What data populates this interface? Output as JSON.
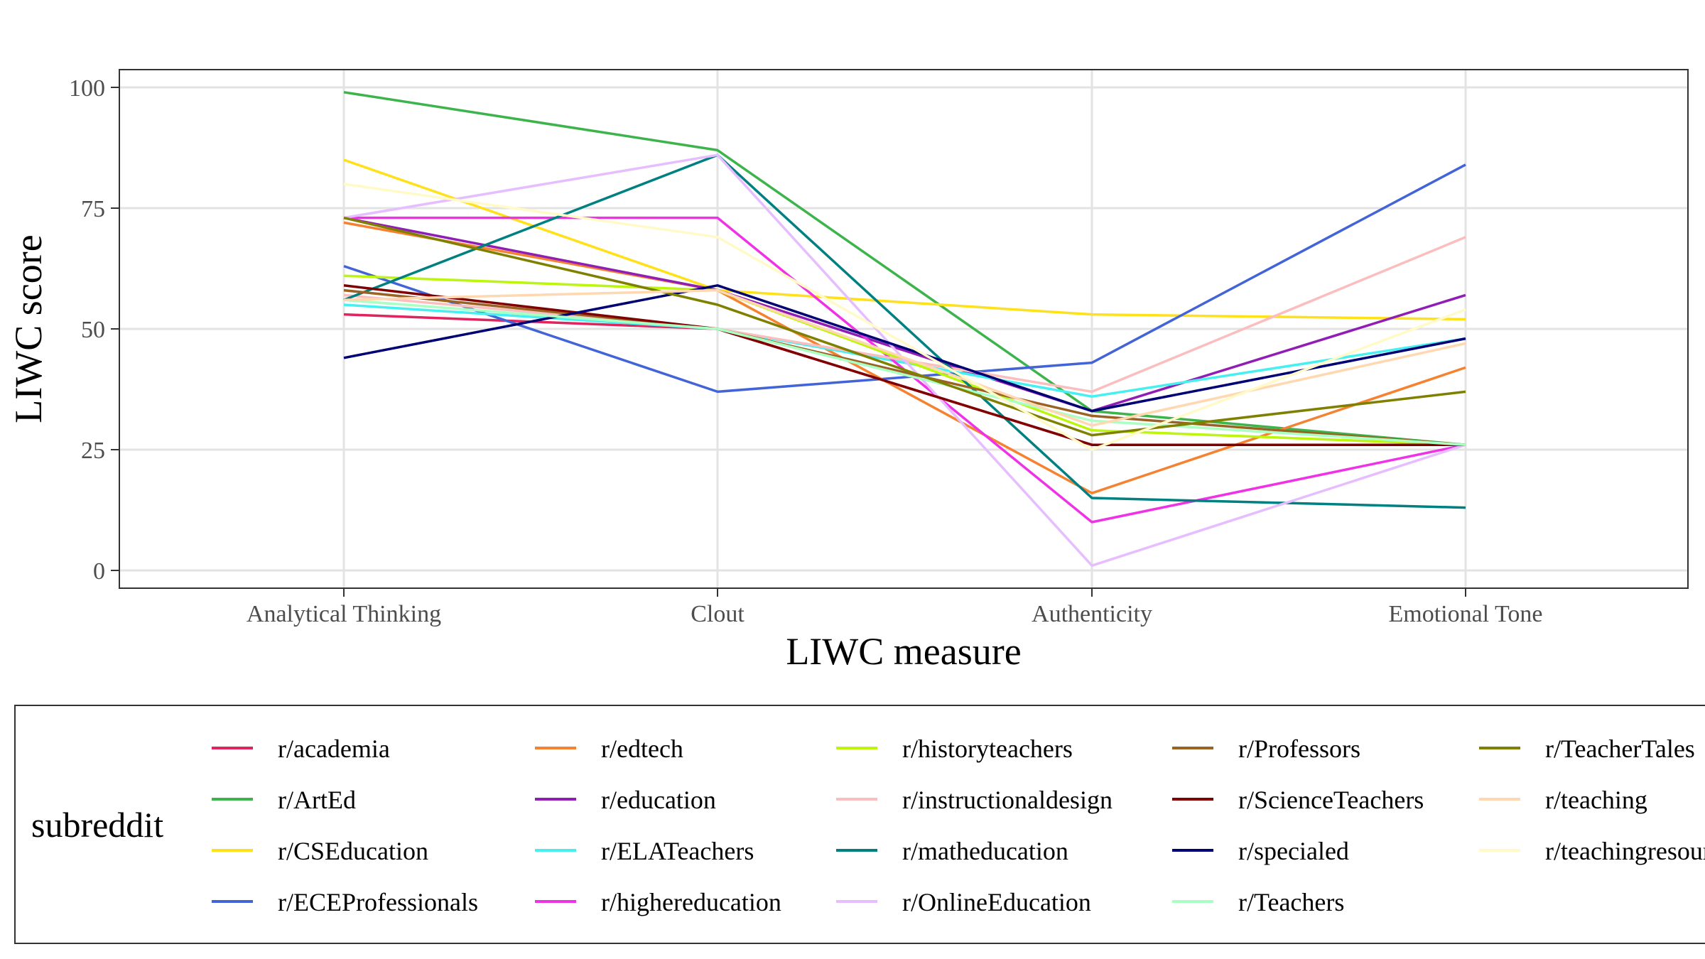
{
  "chart_data": {
    "type": "line",
    "title": "",
    "xlabel": "LIWC measure",
    "ylabel": "LIWC score",
    "categories": [
      "Analytical Thinking",
      "Clout",
      "Authenticity",
      "Emotional Tone"
    ],
    "ylim": [
      -3,
      104
    ],
    "yticks": [
      0,
      25,
      50,
      75,
      100
    ],
    "grid": true,
    "legend": {
      "title": "subreddit",
      "position": "bottom"
    },
    "series": [
      {
        "name": "r/academia",
        "color": "#e0245e",
        "values": [
          53,
          50,
          26,
          26
        ]
      },
      {
        "name": "r/ArtEd",
        "color": "#3cb44b",
        "values": [
          99,
          87,
          33,
          26
        ]
      },
      {
        "name": "r/CSEducation",
        "color": "#ffe119",
        "values": [
          85,
          58,
          53,
          52
        ]
      },
      {
        "name": "r/ECEProfessionals",
        "color": "#4363d8",
        "values": [
          63,
          37,
          43,
          84
        ]
      },
      {
        "name": "r/edtech",
        "color": "#f58231",
        "values": [
          72,
          58,
          16,
          42
        ]
      },
      {
        "name": "r/education",
        "color": "#911eb4",
        "values": [
          73,
          58,
          33,
          57
        ]
      },
      {
        "name": "r/ELATeachers",
        "color": "#46f0f0",
        "values": [
          55,
          50,
          36,
          48
        ]
      },
      {
        "name": "r/highereducation",
        "color": "#f032e6",
        "values": [
          73,
          73,
          10,
          26
        ]
      },
      {
        "name": "r/historyteachers",
        "color": "#bcf60c",
        "values": [
          61,
          58,
          29,
          26
        ]
      },
      {
        "name": "r/instructionaldesign",
        "color": "#fabebe",
        "values": [
          57,
          50,
          37,
          69
        ]
      },
      {
        "name": "r/matheducation",
        "color": "#008080",
        "values": [
          56,
          86,
          15,
          13
        ]
      },
      {
        "name": "r/OnlineEducation",
        "color": "#e6beff",
        "values": [
          73,
          86,
          1,
          26
        ]
      },
      {
        "name": "r/Professors",
        "color": "#9a6324",
        "values": [
          58,
          50,
          32,
          26
        ]
      },
      {
        "name": "r/ScienceTeachers",
        "color": "#800000",
        "values": [
          59,
          50,
          26,
          26
        ]
      },
      {
        "name": "r/specialed",
        "color": "#000075",
        "values": [
          44,
          59,
          33,
          48
        ]
      },
      {
        "name": "r/Teachers",
        "color": "#aaffc3",
        "values": [
          56,
          50,
          31,
          26
        ]
      },
      {
        "name": "r/TeacherTales",
        "color": "#808000",
        "values": [
          73,
          55,
          28,
          37
        ]
      },
      {
        "name": "r/teaching",
        "color": "#ffd8b1",
        "values": [
          56,
          58,
          30,
          47
        ]
      },
      {
        "name": "r/teachingresources",
        "color": "#fffac8",
        "values": [
          80,
          69,
          25,
          54
        ]
      }
    ]
  }
}
